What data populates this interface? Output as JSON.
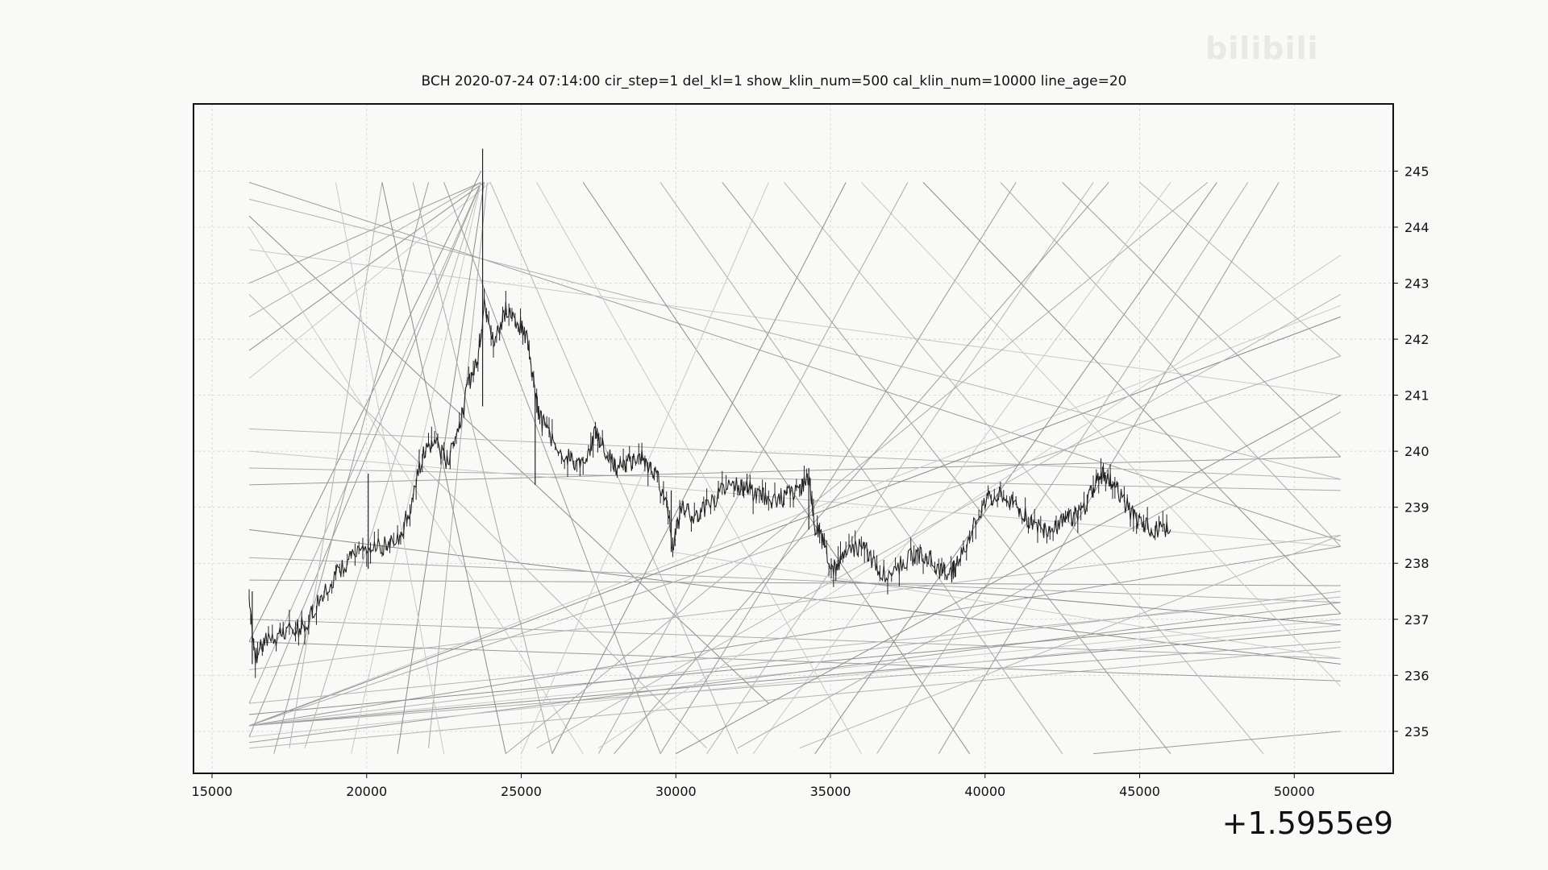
{
  "watermark_text": "bilibili",
  "chart_data": {
    "type": "candlestick",
    "title": "BCH    2020-07-24 07:14:00 cir_step=1 del_kl=1 show_klin_num=500 cal_klin_num=10000 line_age=20",
    "x_offset_label": "+1.5955e9",
    "xlim": [
      14400,
      53200
    ],
    "ylim": [
      234.25,
      246.2
    ],
    "x_ticks": [
      15000,
      20000,
      25000,
      30000,
      35000,
      40000,
      45000,
      50000
    ],
    "x_tick_labels": [
      "15000",
      "20000",
      "25000",
      "30000",
      "35000",
      "40000",
      "45000",
      "50000"
    ],
    "y_ticks": [
      235,
      236,
      237,
      238,
      239,
      240,
      241,
      242,
      243,
      244,
      245
    ],
    "y_tick_labels": [
      "235",
      "236",
      "237",
      "238",
      "239",
      "240",
      "241",
      "242",
      "243",
      "244",
      "245"
    ],
    "grid": true,
    "y_axis_position": "right",
    "price_path": [
      [
        16200,
        237.4
      ],
      [
        16400,
        236.3
      ],
      [
        16700,
        236.6
      ],
      [
        17200,
        236.7
      ],
      [
        17600,
        236.8
      ],
      [
        18000,
        236.9
      ],
      [
        18500,
        237.4
      ],
      [
        19000,
        237.8
      ],
      [
        19500,
        238.1
      ],
      [
        20000,
        238.2
      ],
      [
        20500,
        238.3
      ],
      [
        21000,
        238.4
      ],
      [
        21400,
        239.0
      ],
      [
        21800,
        239.9
      ],
      [
        22200,
        240.2
      ],
      [
        22600,
        239.8
      ],
      [
        23000,
        240.5
      ],
      [
        23300,
        241.2
      ],
      [
        23600,
        241.7
      ],
      [
        23800,
        242.6
      ],
      [
        24100,
        242.0
      ],
      [
        24500,
        242.5
      ],
      [
        24900,
        242.3
      ],
      [
        25200,
        242.0
      ],
      [
        25400,
        241.2
      ],
      [
        25600,
        240.6
      ],
      [
        25900,
        240.3
      ],
      [
        26300,
        240.0
      ],
      [
        26700,
        239.8
      ],
      [
        27100,
        239.7
      ],
      [
        27400,
        240.4
      ],
      [
        27700,
        240.0
      ],
      [
        28100,
        239.7
      ],
      [
        28500,
        239.8
      ],
      [
        28900,
        239.9
      ],
      [
        29300,
        239.6
      ],
      [
        29700,
        239.2
      ],
      [
        29900,
        238.3
      ],
      [
        30200,
        239.0
      ],
      [
        30600,
        238.8
      ],
      [
        31000,
        239.0
      ],
      [
        31500,
        239.3
      ],
      [
        32000,
        239.4
      ],
      [
        32400,
        239.3
      ],
      [
        32800,
        239.2
      ],
      [
        33200,
        239.1
      ],
      [
        33600,
        239.2
      ],
      [
        34000,
        239.3
      ],
      [
        34300,
        239.5
      ],
      [
        34500,
        238.7
      ],
      [
        34800,
        238.3
      ],
      [
        35100,
        237.9
      ],
      [
        35400,
        238.1
      ],
      [
        35800,
        238.3
      ],
      [
        36200,
        238.2
      ],
      [
        36600,
        237.8
      ],
      [
        37100,
        237.9
      ],
      [
        37600,
        238.1
      ],
      [
        38000,
        238.2
      ],
      [
        38500,
        237.9
      ],
      [
        38900,
        237.8
      ],
      [
        39200,
        238.1
      ],
      [
        39600,
        238.6
      ],
      [
        40000,
        239.1
      ],
      [
        40400,
        239.2
      ],
      [
        40800,
        239.1
      ],
      [
        41200,
        238.9
      ],
      [
        41600,
        238.7
      ],
      [
        42000,
        238.6
      ],
      [
        42400,
        238.7
      ],
      [
        42800,
        238.8
      ],
      [
        43200,
        239.0
      ],
      [
        43600,
        239.5
      ],
      [
        43900,
        239.6
      ],
      [
        44200,
        239.4
      ],
      [
        44600,
        239.0
      ],
      [
        45000,
        238.7
      ],
      [
        45500,
        238.6
      ],
      [
        46000,
        238.6
      ]
    ],
    "spikes": [
      {
        "x": 23750,
        "high": 245.4,
        "low": 240.8
      },
      {
        "x": 20050,
        "high": 239.6,
        "low": 237.9
      },
      {
        "x": 25450,
        "high": 241.0,
        "low": 239.4
      },
      {
        "x": 29850,
        "high": 239.3,
        "low": 238.2
      },
      {
        "x": 34300,
        "high": 239.7,
        "low": 238.6
      },
      {
        "x": 16300,
        "high": 237.5,
        "low": 236.2
      }
    ],
    "trend_lines": [
      [
        16200,
        244.8,
        51500,
        238.4
      ],
      [
        16200,
        244.5,
        51500,
        239.5
      ],
      [
        16200,
        243.6,
        51500,
        241.0
      ],
      [
        16200,
        244.2,
        33000,
        235.5
      ],
      [
        16200,
        239.7,
        51500,
        239.3
      ],
      [
        16200,
        239.4,
        51500,
        239.9
      ],
      [
        16200,
        240.4,
        51500,
        239.5
      ],
      [
        16200,
        240.0,
        51500,
        238.3
      ],
      [
        16200,
        238.6,
        51500,
        236.2
      ],
      [
        16200,
        238.1,
        51500,
        237.3
      ],
      [
        16200,
        237.7,
        51500,
        237.6
      ],
      [
        16200,
        236.1,
        51500,
        238.5
      ],
      [
        16200,
        235.1,
        51500,
        242.6
      ],
      [
        16200,
        235.1,
        51500,
        242.4
      ],
      [
        16200,
        235.1,
        51500,
        241.7
      ],
      [
        16200,
        235.1,
        51500,
        238.3
      ],
      [
        16200,
        235.1,
        51500,
        237.5
      ],
      [
        16200,
        235.1,
        51500,
        237.0
      ],
      [
        16200,
        235.1,
        51500,
        236.8
      ],
      [
        16200,
        235.1,
        51500,
        236.6
      ],
      [
        16200,
        234.8,
        51500,
        237.3
      ],
      [
        16200,
        234.7,
        51500,
        236.5
      ],
      [
        16200,
        234.9,
        51500,
        236.9
      ],
      [
        16200,
        235.3,
        51500,
        237.1
      ],
      [
        16200,
        237.0,
        51500,
        236.3
      ],
      [
        16200,
        236.6,
        51500,
        235.9
      ],
      [
        16200,
        235.5,
        51500,
        237.4
      ],
      [
        16200,
        241.3,
        24000,
        244.8
      ],
      [
        16200,
        241.8,
        23800,
        244.8
      ],
      [
        16200,
        242.4,
        23700,
        244.8
      ],
      [
        16200,
        243.0,
        23700,
        244.8
      ],
      [
        16200,
        242.8,
        31000,
        234.7
      ],
      [
        16200,
        244.0,
        27000,
        234.6
      ],
      [
        16200,
        236.6,
        23700,
        245.0
      ],
      [
        16200,
        235.5,
        23700,
        244.8
      ],
      [
        16200,
        234.9,
        23700,
        244.8
      ],
      [
        18000,
        234.7,
        23700,
        244.8
      ],
      [
        19500,
        234.6,
        23700,
        244.8
      ],
      [
        21000,
        234.6,
        23800,
        244.8
      ],
      [
        22000,
        234.7,
        23900,
        244.8
      ],
      [
        17000,
        234.6,
        22000,
        244.8
      ],
      [
        17500,
        234.7,
        20500,
        244.8
      ],
      [
        19000,
        244.8,
        22500,
        234.6
      ],
      [
        20500,
        244.8,
        24500,
        234.6
      ],
      [
        21500,
        244.8,
        26000,
        234.6
      ],
      [
        22500,
        244.8,
        29500,
        234.6
      ],
      [
        24000,
        244.8,
        32000,
        234.6
      ],
      [
        25500,
        244.8,
        36000,
        234.6
      ],
      [
        27000,
        244.8,
        39500,
        234.6
      ],
      [
        29500,
        244.8,
        42500,
        234.6
      ],
      [
        31500,
        244.8,
        46000,
        234.6
      ],
      [
        33500,
        244.8,
        49000,
        234.6
      ],
      [
        36000,
        244.8,
        51500,
        235.8
      ],
      [
        38000,
        244.8,
        51500,
        237.1
      ],
      [
        40500,
        244.8,
        51500,
        238.3
      ],
      [
        42500,
        244.8,
        51500,
        239.9
      ],
      [
        45000,
        244.8,
        51500,
        241.7
      ],
      [
        25000,
        234.6,
        33000,
        244.8
      ],
      [
        26000,
        234.6,
        35500,
        244.8
      ],
      [
        27500,
        234.6,
        37500,
        244.8
      ],
      [
        29500,
        234.6,
        41000,
        244.8
      ],
      [
        31000,
        234.6,
        43500,
        244.8
      ],
      [
        32500,
        234.6,
        46000,
        244.8
      ],
      [
        34500,
        234.6,
        47500,
        244.8
      ],
      [
        36500,
        234.6,
        48500,
        244.8
      ],
      [
        38500,
        234.6,
        49500,
        244.8
      ],
      [
        25500,
        234.7,
        51500,
        242.8
      ],
      [
        27500,
        234.7,
        51500,
        243.5
      ],
      [
        30000,
        234.6,
        51500,
        241.0
      ],
      [
        32000,
        234.7,
        51500,
        240.7
      ],
      [
        43500,
        234.6,
        51500,
        235.0
      ],
      [
        34000,
        234.7,
        51500,
        238.5
      ],
      [
        29900,
        238.2,
        51500,
        236.3
      ],
      [
        35000,
        237.7,
        51500,
        236.9
      ],
      [
        24500,
        234.6,
        47200,
        244.8
      ],
      [
        28000,
        234.6,
        44000,
        244.8
      ]
    ]
  }
}
